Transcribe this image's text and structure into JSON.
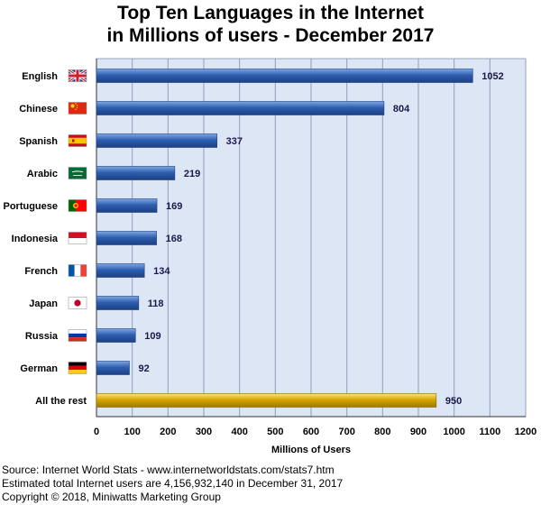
{
  "chart_data": {
    "type": "bar",
    "orientation": "horizontal",
    "title": "Top Ten Languages in the Internet",
    "subtitle": "in Millions of users - December 2017",
    "xlabel": "Millions of Users",
    "ylabel": "",
    "xlim": [
      0,
      1200
    ],
    "xticks": [
      0,
      100,
      200,
      300,
      400,
      500,
      600,
      700,
      800,
      900,
      1000,
      1100,
      1200
    ],
    "grid": true,
    "categories": [
      "English",
      "Chinese",
      "Spanish",
      "Arabic",
      "Portuguese",
      "Indonesia",
      "French",
      "Japan",
      "Russia",
      "German",
      "All the rest"
    ],
    "values": [
      1052,
      804,
      337,
      219,
      169,
      168,
      134,
      118,
      109,
      92,
      950
    ],
    "flags": [
      "uk-flag-icon",
      "china-flag-icon",
      "spain-flag-icon",
      "saudi-arabia-flag-icon",
      "portugal-flag-icon",
      "indonesia-flag-icon",
      "france-flag-icon",
      "japan-flag-icon",
      "russia-flag-icon",
      "germany-flag-icon",
      ""
    ],
    "colors": {
      "bar": "#2f5fb0",
      "bar_highlight": "#d4a800",
      "plot_background": "#dce6f4",
      "grid": "#8da0c0"
    }
  },
  "footer": {
    "source": "Source: Internet World Stats - www.internetworldstats.com/stats7.htm",
    "total": "Estimated total Internet users are 4,156,932,140 in December 31, 2017",
    "copyright": "Copyright © 2018, Miniwatts Marketing Group"
  }
}
